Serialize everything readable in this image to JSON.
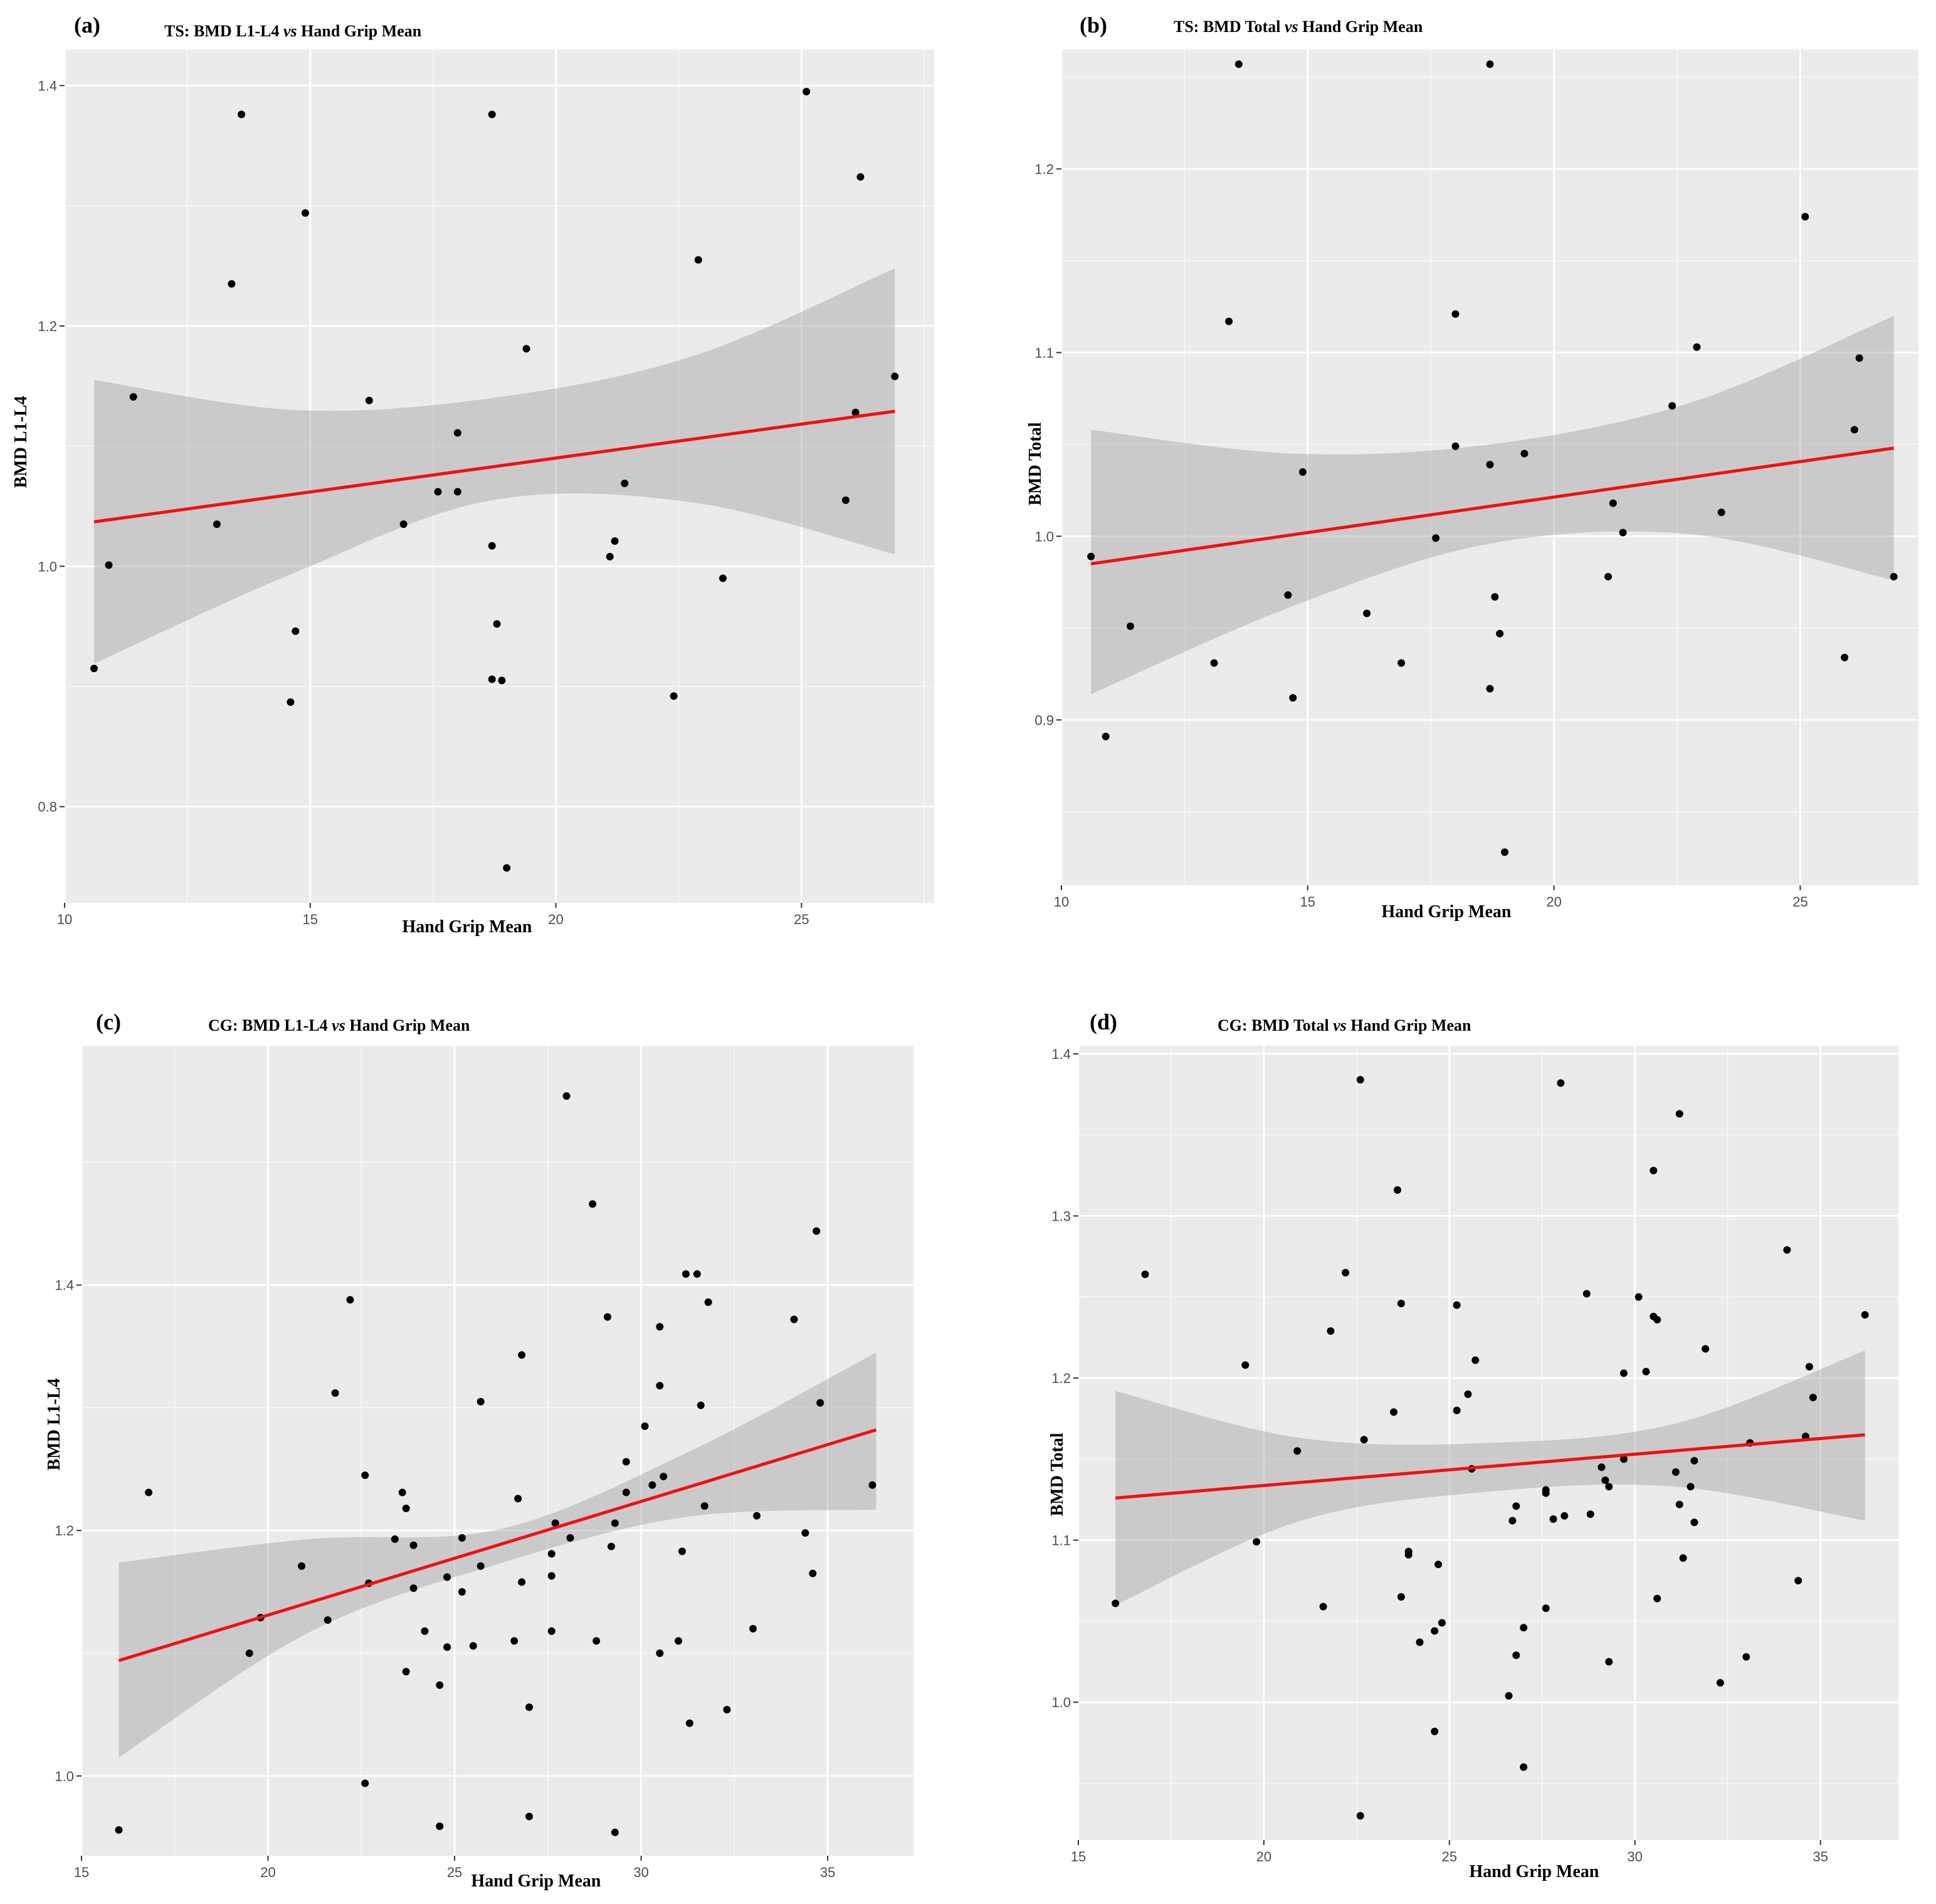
{
  "chart_data": [
    {
      "id": "a",
      "type": "scatter",
      "panel_label": "(a)",
      "title_prefix": "TS: BMD L1-L4 ",
      "title_vs": "vs",
      "title_suffix": " Hand Grip Mean",
      "xlabel": "Hand Grip Mean",
      "ylabel": "BMD L1-L4",
      "xlim": [
        10,
        27.7
      ],
      "ylim": [
        0.72,
        1.43
      ],
      "xticks": [
        10,
        15,
        20,
        25
      ],
      "yticks": [
        0.8,
        1.0,
        1.2,
        1.4
      ],
      "ytick_labels": [
        "0.8",
        "1.0",
        "1.2",
        "1.4"
      ],
      "points": [
        [
          10.6,
          0.915
        ],
        [
          10.9,
          1.001
        ],
        [
          11.4,
          1.141
        ],
        [
          13.1,
          1.035
        ],
        [
          13.4,
          1.235
        ],
        [
          13.6,
          1.376
        ],
        [
          14.6,
          0.887
        ],
        [
          14.7,
          0.946
        ],
        [
          14.9,
          1.294
        ],
        [
          16.2,
          1.138
        ],
        [
          16.9,
          1.035
        ],
        [
          17.6,
          1.062
        ],
        [
          18.0,
          1.111
        ],
        [
          18.0,
          1.062
        ],
        [
          18.7,
          1.376
        ],
        [
          18.7,
          0.906
        ],
        [
          18.7,
          1.017
        ],
        [
          18.8,
          0.952
        ],
        [
          18.9,
          0.905
        ],
        [
          19.0,
          0.749
        ],
        [
          19.4,
          1.181
        ],
        [
          21.1,
          1.008
        ],
        [
          21.2,
          1.021
        ],
        [
          21.4,
          1.069
        ],
        [
          22.4,
          0.892
        ],
        [
          22.9,
          1.255
        ],
        [
          23.4,
          0.99
        ],
        [
          25.1,
          1.395
        ],
        [
          25.9,
          1.055
        ],
        [
          26.1,
          1.128
        ],
        [
          26.2,
          1.324
        ],
        [
          26.9,
          1.158
        ]
      ],
      "fit": {
        "x": [
          10.6,
          26.9
        ],
        "y": [
          1.037,
          1.129
        ]
      },
      "ci_band": {
        "x": [
          10.6,
          14.7,
          18.7,
          22.8,
          26.9
        ],
        "lower": [
          0.919,
          0.995,
          1.055,
          1.053,
          1.01
        ],
        "upper": [
          1.155,
          1.13,
          1.14,
          1.175,
          1.248
        ]
      }
    },
    {
      "id": "b",
      "type": "scatter",
      "panel_label": "(b)",
      "title_prefix": "TS: BMD Total  ",
      "title_vs": "vs",
      "title_suffix": " Hand Grip Mean",
      "xlabel": "Hand Grip Mean",
      "ylabel": "BMD Total",
      "xlim": [
        10,
        27.4
      ],
      "ylim": [
        0.81,
        1.265
      ],
      "xticks": [
        10,
        15,
        20,
        25
      ],
      "yticks": [
        0.9,
        1.0,
        1.1,
        1.2
      ],
      "ytick_labels": [
        "0.9",
        "1.0",
        "1.1",
        "1.2"
      ],
      "points": [
        [
          10.6,
          0.989
        ],
        [
          10.9,
          0.891
        ],
        [
          11.4,
          0.951
        ],
        [
          13.1,
          0.931
        ],
        [
          13.4,
          1.117
        ],
        [
          13.6,
          1.257
        ],
        [
          14.6,
          0.968
        ],
        [
          14.7,
          0.912
        ],
        [
          14.9,
          1.035
        ],
        [
          16.2,
          0.958
        ],
        [
          16.9,
          0.931
        ],
        [
          17.6,
          0.999
        ],
        [
          18.0,
          1.121
        ],
        [
          18.0,
          1.049
        ],
        [
          18.7,
          1.257
        ],
        [
          18.7,
          0.917
        ],
        [
          18.7,
          1.039
        ],
        [
          18.8,
          0.967
        ],
        [
          18.9,
          0.947
        ],
        [
          19.0,
          0.828
        ],
        [
          19.4,
          1.045
        ],
        [
          21.1,
          0.978
        ],
        [
          21.2,
          1.018
        ],
        [
          21.4,
          1.002
        ],
        [
          22.4,
          1.071
        ],
        [
          22.9,
          1.103
        ],
        [
          23.4,
          1.013
        ],
        [
          25.1,
          1.174
        ],
        [
          25.9,
          0.934
        ],
        [
          26.1,
          1.058
        ],
        [
          26.2,
          1.097
        ],
        [
          26.9,
          0.978
        ]
      ],
      "fit": {
        "x": [
          10.6,
          26.9
        ],
        "y": [
          0.985,
          1.048
        ]
      },
      "ci_band": {
        "x": [
          10.6,
          14.7,
          18.7,
          22.8,
          26.9
        ],
        "lower": [
          0.914,
          0.962,
          0.996,
          1.001,
          0.976
        ],
        "upper": [
          1.058,
          1.045,
          1.05,
          1.073,
          1.12
        ]
      }
    },
    {
      "id": "c",
      "type": "scatter",
      "panel_label": "(c)",
      "title_prefix": "CG: BMD L1-L4  ",
      "title_vs": "vs",
      "title_suffix": " Hand Grip Mean",
      "xlabel": "Hand Grip Mean",
      "ylabel": "BMD L1-L4",
      "xlim": [
        15,
        37.3
      ],
      "ylim": [
        0.935,
        1.595
      ],
      "xticks": [
        15,
        20,
        25,
        30,
        35
      ],
      "yticks": [
        1.0,
        1.2,
        1.4
      ],
      "ytick_labels": [
        "1.0",
        "1.2",
        "1.4"
      ],
      "points": [
        [
          16.0,
          0.956
        ],
        [
          16.8,
          1.231
        ],
        [
          19.5,
          1.1
        ],
        [
          19.8,
          1.129
        ],
        [
          20.9,
          1.171
        ],
        [
          21.6,
          1.127
        ],
        [
          21.8,
          1.312
        ],
        [
          22.2,
          1.388
        ],
        [
          22.6,
          1.245
        ],
        [
          22.7,
          1.157
        ],
        [
          22.6,
          0.994
        ],
        [
          23.4,
          1.193
        ],
        [
          23.6,
          1.231
        ],
        [
          23.7,
          1.218
        ],
        [
          23.7,
          1.085
        ],
        [
          23.9,
          1.188
        ],
        [
          23.9,
          1.153
        ],
        [
          24.2,
          1.118
        ],
        [
          24.6,
          0.959
        ],
        [
          24.6,
          1.074
        ],
        [
          24.8,
          1.162
        ],
        [
          24.8,
          1.105
        ],
        [
          25.2,
          1.15
        ],
        [
          25.2,
          1.194
        ],
        [
          25.5,
          1.106
        ],
        [
          25.7,
          1.171
        ],
        [
          25.7,
          1.305
        ],
        [
          26.6,
          1.11
        ],
        [
          26.7,
          1.226
        ],
        [
          26.8,
          1.343
        ],
        [
          26.8,
          1.158
        ],
        [
          27.0,
          0.967
        ],
        [
          27.0,
          1.056
        ],
        [
          27.6,
          1.163
        ],
        [
          27.6,
          1.118
        ],
        [
          27.6,
          1.181
        ],
        [
          27.7,
          1.206
        ],
        [
          28.0,
          1.554
        ],
        [
          28.1,
          1.194
        ],
        [
          28.7,
          1.466
        ],
        [
          28.8,
          1.11
        ],
        [
          29.1,
          1.374
        ],
        [
          29.3,
          1.206
        ],
        [
          29.2,
          1.187
        ],
        [
          29.3,
          0.954
        ],
        [
          29.6,
          1.231
        ],
        [
          29.6,
          1.256
        ],
        [
          30.1,
          1.285
        ],
        [
          30.3,
          1.237
        ],
        [
          30.5,
          1.366
        ],
        [
          30.5,
          1.318
        ],
        [
          30.6,
          1.244
        ],
        [
          30.5,
          1.1
        ],
        [
          31.0,
          1.11
        ],
        [
          31.1,
          1.183
        ],
        [
          31.2,
          1.409
        ],
        [
          31.3,
          1.043
        ],
        [
          31.5,
          1.409
        ],
        [
          31.6,
          1.302
        ],
        [
          31.7,
          1.22
        ],
        [
          31.8,
          1.386
        ],
        [
          32.3,
          1.054
        ],
        [
          33.0,
          1.12
        ],
        [
          33.1,
          1.212
        ],
        [
          34.1,
          1.372
        ],
        [
          34.4,
          1.198
        ],
        [
          34.6,
          1.165
        ],
        [
          34.7,
          1.444
        ],
        [
          34.8,
          1.304
        ],
        [
          36.2,
          1.237
        ]
      ],
      "fit": {
        "x": [
          16.0,
          36.3
        ],
        "y": [
          1.094,
          1.282
        ]
      },
      "ci_band": {
        "x": [
          16.0,
          21.1,
          26.2,
          31.2,
          36.3
        ],
        "lower": [
          1.015,
          1.117,
          1.173,
          1.211,
          1.217
        ],
        "upper": [
          1.174,
          1.193,
          1.201,
          1.263,
          1.345
        ]
      }
    },
    {
      "id": "d",
      "type": "scatter",
      "panel_label": "(d)",
      "title_prefix": "CG: BMD Total  ",
      "title_vs": "vs",
      "title_suffix": " Hand Grip Mean",
      "xlabel": "Hand Grip Mean",
      "ylabel": "BMD Total",
      "xlim": [
        15,
        37.1
      ],
      "ylim": [
        0.915,
        1.405
      ],
      "xticks": [
        15,
        20,
        25,
        30,
        35
      ],
      "yticks": [
        1.0,
        1.1,
        1.2,
        1.3,
        1.4
      ],
      "ytick_labels": [
        "1.0",
        "1.1",
        "1.2",
        "1.3",
        "1.4"
      ],
      "points": [
        [
          16.0,
          1.061
        ],
        [
          16.8,
          1.264
        ],
        [
          19.5,
          1.208
        ],
        [
          19.8,
          1.099
        ],
        [
          20.9,
          1.155
        ],
        [
          21.6,
          1.059
        ],
        [
          21.8,
          1.229
        ],
        [
          22.2,
          1.265
        ],
        [
          22.6,
          1.384
        ],
        [
          22.7,
          1.162
        ],
        [
          22.6,
          0.93
        ],
        [
          23.5,
          1.179
        ],
        [
          23.6,
          1.316
        ],
        [
          23.7,
          1.246
        ],
        [
          23.7,
          1.065
        ],
        [
          23.9,
          1.093
        ],
        [
          23.9,
          1.091
        ],
        [
          24.2,
          1.037
        ],
        [
          24.6,
          0.982
        ],
        [
          24.6,
          1.044
        ],
        [
          24.7,
          1.085
        ],
        [
          24.8,
          1.049
        ],
        [
          25.2,
          1.245
        ],
        [
          25.2,
          1.18
        ],
        [
          25.5,
          1.19
        ],
        [
          25.6,
          1.144
        ],
        [
          25.7,
          1.211
        ],
        [
          26.6,
          1.004
        ],
        [
          26.7,
          1.112
        ],
        [
          26.8,
          1.121
        ],
        [
          26.8,
          1.029
        ],
        [
          27.0,
          0.96
        ],
        [
          27.0,
          1.046
        ],
        [
          27.6,
          1.058
        ],
        [
          27.6,
          1.131
        ],
        [
          27.6,
          1.129
        ],
        [
          27.8,
          1.113
        ],
        [
          28.0,
          1.382
        ],
        [
          28.1,
          1.115
        ],
        [
          28.7,
          1.252
        ],
        [
          28.8,
          1.116
        ],
        [
          29.1,
          1.145
        ],
        [
          29.2,
          1.137
        ],
        [
          29.3,
          1.133
        ],
        [
          29.3,
          1.025
        ],
        [
          29.7,
          1.15
        ],
        [
          29.7,
          1.203
        ],
        [
          30.1,
          1.25
        ],
        [
          30.3,
          1.204
        ],
        [
          30.5,
          1.238
        ],
        [
          30.5,
          1.328
        ],
        [
          30.6,
          1.236
        ],
        [
          30.6,
          1.064
        ],
        [
          31.1,
          1.142
        ],
        [
          31.2,
          1.122
        ],
        [
          31.2,
          1.363
        ],
        [
          31.3,
          1.089
        ],
        [
          31.5,
          1.133
        ],
        [
          31.6,
          1.149
        ],
        [
          31.6,
          1.111
        ],
        [
          31.9,
          1.218
        ],
        [
          32.3,
          1.012
        ],
        [
          33.0,
          1.028
        ],
        [
          33.1,
          1.16
        ],
        [
          34.1,
          1.279
        ],
        [
          34.4,
          1.075
        ],
        [
          34.6,
          1.164
        ],
        [
          34.7,
          1.207
        ],
        [
          34.8,
          1.188
        ],
        [
          36.2,
          1.239
        ]
      ],
      "fit": {
        "x": [
          16.0,
          36.2
        ],
        "y": [
          1.126,
          1.165
        ]
      },
      "ci_band": {
        "x": [
          16.0,
          21.0,
          26.1,
          31.1,
          36.2
        ],
        "lower": [
          1.06,
          1.112,
          1.13,
          1.133,
          1.112
        ],
        "upper": [
          1.192,
          1.163,
          1.16,
          1.172,
          1.217
        ]
      }
    }
  ]
}
